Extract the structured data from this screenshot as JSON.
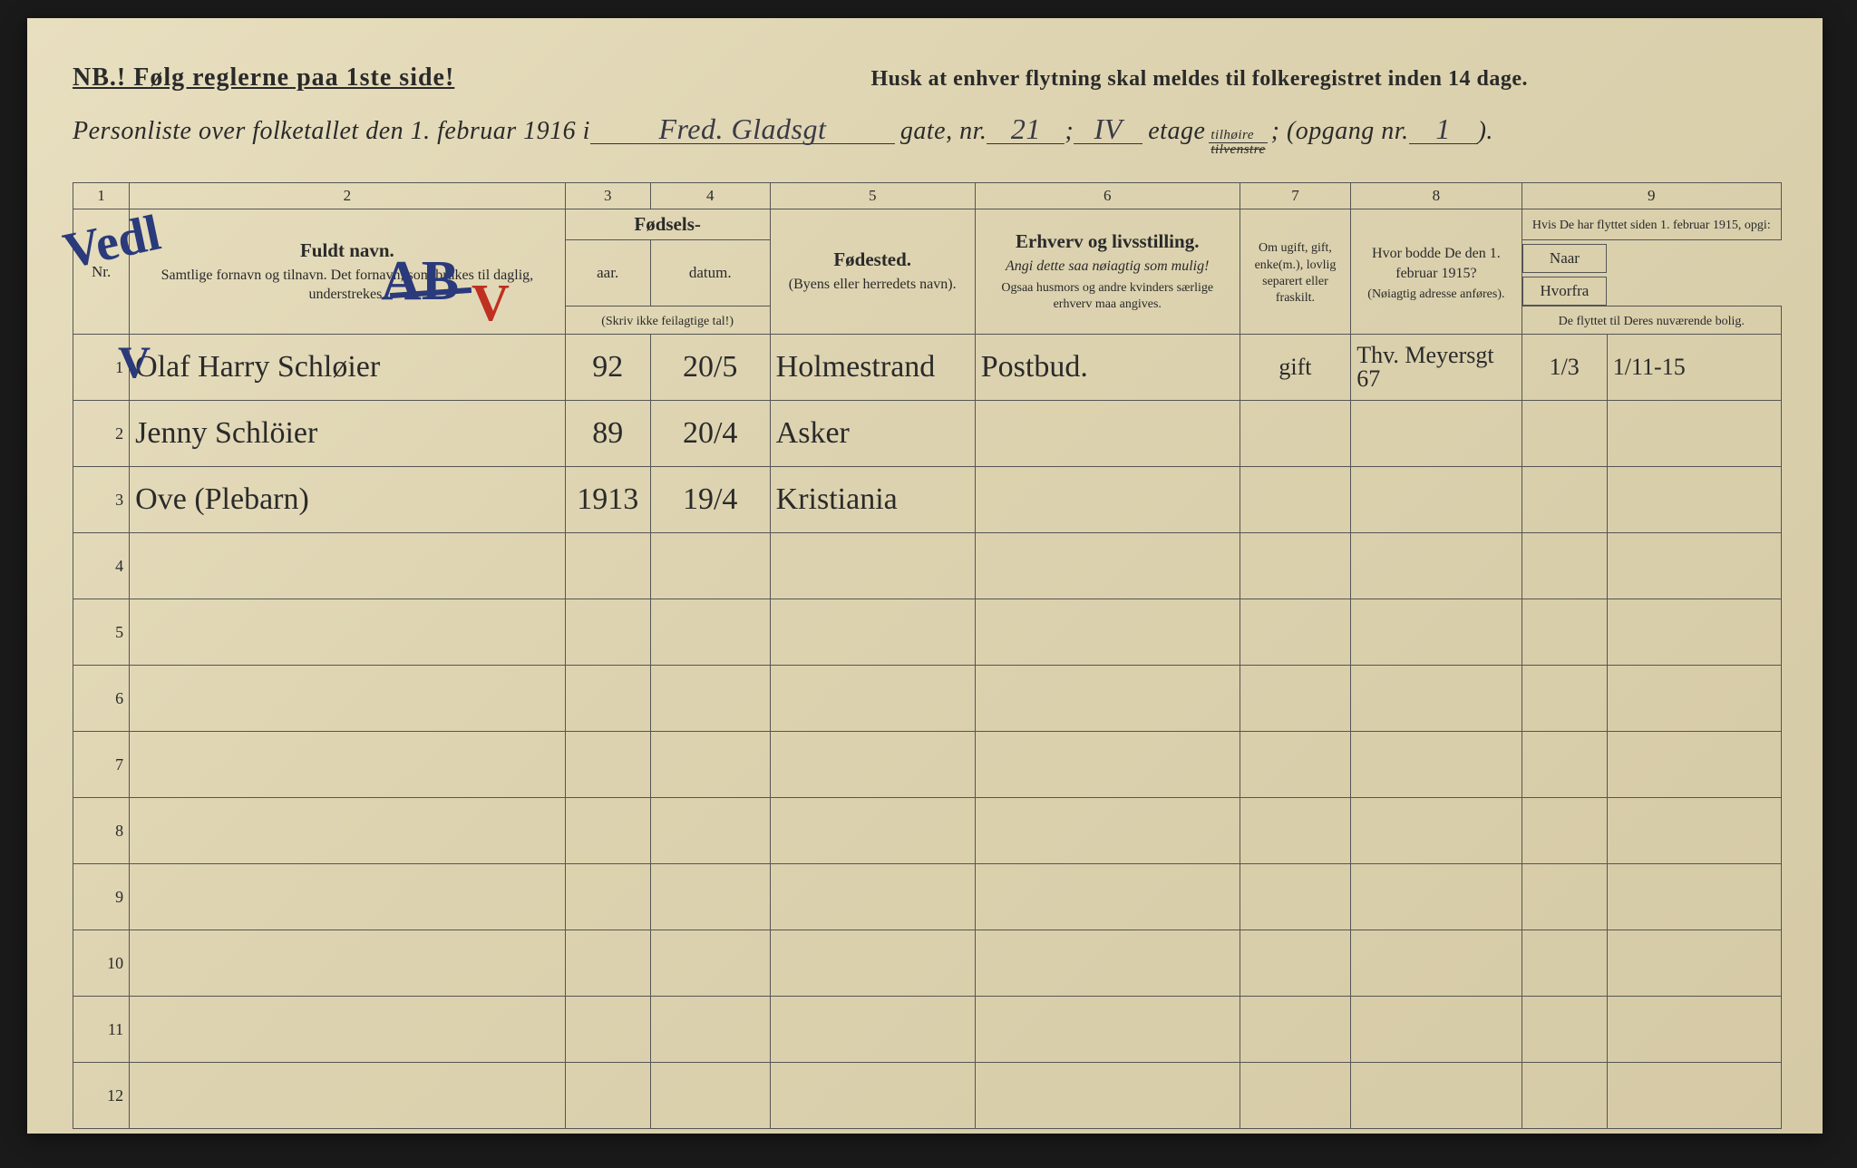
{
  "header": {
    "nb": "NB.! Følg reglerne paa 1ste side!",
    "husk": "Husk at enhver flytning skal meldes til folkeregistret inden 14 dage.",
    "line2_pre": "Personliste over folketallet den 1. februar 1916 i ",
    "street": "Fred. Gladsgt",
    "gate": "gate, nr.",
    "nr": "21",
    "semicolon": ";",
    "etg": "IV",
    "etage": "etage",
    "tilhoire": "tilhøire",
    "tilvenstre": "tilvenstre",
    "opgang_pre": "; (opgang nr.",
    "opgang": "1",
    "close": ")."
  },
  "colnums": [
    "1",
    "2",
    "3",
    "4",
    "5",
    "6",
    "7",
    "8",
    "9"
  ],
  "th": {
    "nr": "Nr.",
    "fuldt": "Fuldt navn.",
    "fuldt_sub": "Samtlige fornavn og tilnavn. Det fornavn, som brukes til daglig, understrekes.",
    "fodsels": "Fødsels-",
    "aar": "aar.",
    "datum": "datum.",
    "fodsels_sub": "(Skriv ikke feilagtige tal!)",
    "fodested": "Fødested.",
    "fodested_sub": "(Byens eller herredets navn).",
    "erhverv": "Erhverv og livsstilling.",
    "erhverv_sub1": "Angi dette saa nøiagtig som mulig!",
    "erhverv_sub2": "Ogsaa husmors og andre kvinders særlige erhverv maa angives.",
    "ugift": "Om ugift, gift, enke(m.), lovlig separert eller fraskilt.",
    "bodde": "Hvor bodde De den 1. februar 1915?",
    "bodde_sub": "(Nøiagtig adresse anføres).",
    "flyttet": "Hvis De har flyttet siden 1. februar 1915, opgi:",
    "naar": "Naar",
    "hvorfra": "Hvorfra",
    "flyttet_sub": "De flyttet til Deres nuværende bolig."
  },
  "rows": [
    {
      "nr": "1",
      "name": "Olaf Harry Schløier",
      "aar": "92",
      "datum": "20/5",
      "sted": "Holmestrand",
      "erh": "Postbud.",
      "ugift": "gift",
      "bodde": "Thv. Meyersgt 67",
      "naar": "1/3",
      "hvor": "1/11-15"
    },
    {
      "nr": "2",
      "name": "Jenny    Schlöier",
      "aar": "89",
      "datum": "20/4",
      "sted": "Asker",
      "erh": "",
      "ugift": "",
      "bodde": "",
      "naar": "",
      "hvor": ""
    },
    {
      "nr": "3",
      "name": "Ove    (Plebarn)",
      "aar": "1913",
      "datum": "19/4",
      "sted": "Kristiania",
      "erh": "",
      "ugift": "",
      "bodde": "",
      "naar": "",
      "hvor": ""
    },
    {
      "nr": "4",
      "name": "",
      "aar": "",
      "datum": "",
      "sted": "",
      "erh": "",
      "ugift": "",
      "bodde": "",
      "naar": "",
      "hvor": ""
    },
    {
      "nr": "5",
      "name": "",
      "aar": "",
      "datum": "",
      "sted": "",
      "erh": "",
      "ugift": "",
      "bodde": "",
      "naar": "",
      "hvor": ""
    },
    {
      "nr": "6",
      "name": "",
      "aar": "",
      "datum": "",
      "sted": "",
      "erh": "",
      "ugift": "",
      "bodde": "",
      "naar": "",
      "hvor": ""
    },
    {
      "nr": "7",
      "name": "",
      "aar": "",
      "datum": "",
      "sted": "",
      "erh": "",
      "ugift": "",
      "bodde": "",
      "naar": "",
      "hvor": ""
    },
    {
      "nr": "8",
      "name": "",
      "aar": "",
      "datum": "",
      "sted": "",
      "erh": "",
      "ugift": "",
      "bodde": "",
      "naar": "",
      "hvor": ""
    },
    {
      "nr": "9",
      "name": "",
      "aar": "",
      "datum": "",
      "sted": "",
      "erh": "",
      "ugift": "",
      "bodde": "",
      "naar": "",
      "hvor": ""
    },
    {
      "nr": "10",
      "name": "",
      "aar": "",
      "datum": "",
      "sted": "",
      "erh": "",
      "ugift": "",
      "bodde": "",
      "naar": "",
      "hvor": ""
    },
    {
      "nr": "11",
      "name": "",
      "aar": "",
      "datum": "",
      "sted": "",
      "erh": "",
      "ugift": "",
      "bodde": "",
      "naar": "",
      "hvor": ""
    },
    {
      "nr": "12",
      "name": "",
      "aar": "",
      "datum": "",
      "sted": "",
      "erh": "",
      "ugift": "",
      "bodde": "",
      "naar": "",
      "hvor": ""
    }
  ],
  "annotations": {
    "vedl": "Vedl"
  },
  "style": {
    "paper_bg": "#e0d6b3",
    "ink": "#2a2a2a",
    "handwriting": "#2f2f38",
    "blue_pencil": "#2a3a7a",
    "red_pencil": "#c03020",
    "border": "#555"
  }
}
